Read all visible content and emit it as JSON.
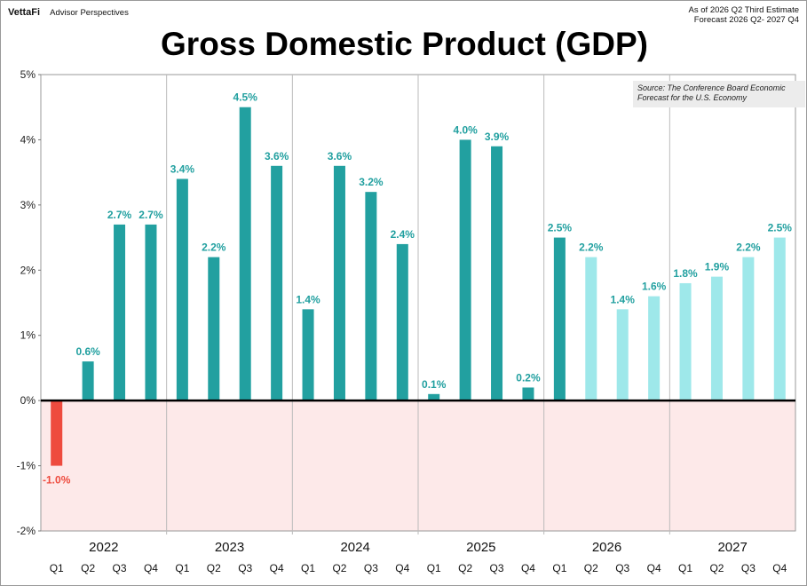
{
  "header": {
    "brand_logo": "VettaFi",
    "brand_name": "Advisor Perspectives",
    "as_of_line1": "As  of 2026 Q2 Third Estimate",
    "as_of_line2": "Forecast 2026 Q2- 2027 Q4",
    "title": "Gross Domestic Product (GDP)"
  },
  "source_note": {
    "line1": "Source: The Conference Board Economic",
    "line2": "Forecast for the U.S. Economy"
  },
  "colors": {
    "actual": "#22A0A0",
    "forecast": "#9EE8EA",
    "negative": "#EE4B3E",
    "negative_zone": "#FDE9E9",
    "zero_line": "#000000",
    "year_divider": "#BBBBBB"
  },
  "chart_data": {
    "type": "bar",
    "title": "Gross Domestic Product (GDP)",
    "ylim": [
      -2,
      5
    ],
    "yticks": [
      -2,
      -1,
      0,
      1,
      2,
      3,
      4,
      5
    ],
    "ytick_labels": [
      "-2%",
      "-1%",
      "0%",
      "1%",
      "2%",
      "3%",
      "4%",
      "5%"
    ],
    "grid": false,
    "years": [
      "2022",
      "2023",
      "2024",
      "2025",
      "2026",
      "2027"
    ],
    "quarters": [
      "Q1",
      "Q2",
      "Q3",
      "Q4"
    ],
    "values": [
      -1.0,
      0.6,
      2.7,
      2.7,
      3.4,
      2.2,
      4.5,
      3.6,
      1.4,
      3.6,
      3.2,
      2.4,
      0.1,
      4.0,
      3.9,
      0.2,
      2.5,
      2.2,
      1.4,
      1.6,
      1.8,
      1.9,
      2.2,
      2.5
    ],
    "labels": [
      "-1.0%",
      "0.6%",
      "2.7%",
      "2.7%",
      "3.4%",
      "2.2%",
      "4.5%",
      "3.6%",
      "1.4%",
      "3.6%",
      "3.2%",
      "2.4%",
      "0.1%",
      "4.0%",
      "3.9%",
      "0.2%",
      "2.5%",
      "2.2%",
      "1.4%",
      "1.6%",
      "1.8%",
      "1.9%",
      "2.2%",
      "2.5%"
    ],
    "forecast": [
      false,
      false,
      false,
      false,
      false,
      false,
      false,
      false,
      false,
      false,
      false,
      false,
      false,
      false,
      false,
      false,
      false,
      true,
      true,
      true,
      true,
      true,
      true,
      true
    ]
  }
}
